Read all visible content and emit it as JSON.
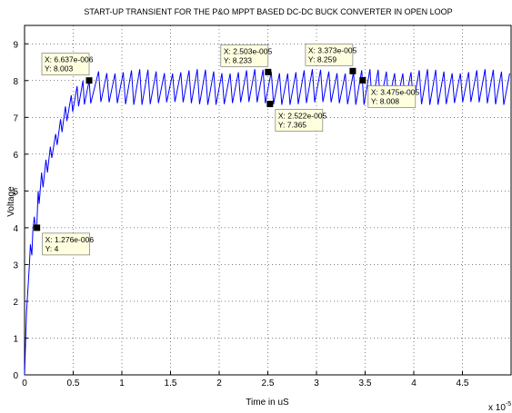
{
  "chart_data": {
    "type": "line",
    "title": "START-UP TRANSIENT FOR THE P&O MPPT BASED DC-DC BUCK CONVERTER IN OPEN LOOP",
    "xlabel": "Time in uS",
    "ylabel": "Voltage",
    "x_exponent_label": "x 10",
    "x_exponent_power": "-5",
    "xlim": [
      0,
      5
    ],
    "ylim": [
      0,
      9.5
    ],
    "grid": true,
    "x_ticks": [
      "0",
      "0.5",
      "1",
      "1.5",
      "2",
      "2.5",
      "3",
      "3.5",
      "4",
      "4.5"
    ],
    "y_ticks": [
      "0",
      "1",
      "2",
      "3",
      "4",
      "5",
      "6",
      "7",
      "8",
      "9"
    ],
    "line_color": "#0000ff",
    "ripple": {
      "start_x": 0.7,
      "period": 0.0845,
      "low": 7.38,
      "high": 8.25
    },
    "startup_points": [
      {
        "x": 0.0,
        "y": 0.0
      },
      {
        "x": 0.02,
        "y": 1.7
      },
      {
        "x": 0.05,
        "y": 3.0
      },
      {
        "x": 0.06,
        "y": 3.55
      },
      {
        "x": 0.075,
        "y": 3.25
      },
      {
        "x": 0.085,
        "y": 3.9
      },
      {
        "x": 0.1,
        "y": 4.3
      },
      {
        "x": 0.11,
        "y": 4.05
      },
      {
        "x": 0.125,
        "y": 4.0
      },
      {
        "x": 0.14,
        "y": 5.0
      },
      {
        "x": 0.15,
        "y": 4.65
      },
      {
        "x": 0.175,
        "y": 5.5
      },
      {
        "x": 0.19,
        "y": 5.1
      },
      {
        "x": 0.22,
        "y": 5.85
      },
      {
        "x": 0.235,
        "y": 5.5
      },
      {
        "x": 0.265,
        "y": 6.2
      },
      {
        "x": 0.28,
        "y": 5.9
      },
      {
        "x": 0.32,
        "y": 6.55
      },
      {
        "x": 0.335,
        "y": 6.25
      },
      {
        "x": 0.37,
        "y": 6.95
      },
      {
        "x": 0.385,
        "y": 6.6
      },
      {
        "x": 0.42,
        "y": 7.3
      },
      {
        "x": 0.435,
        "y": 6.9
      },
      {
        "x": 0.48,
        "y": 7.6
      },
      {
        "x": 0.495,
        "y": 7.15
      },
      {
        "x": 0.54,
        "y": 7.85
      },
      {
        "x": 0.555,
        "y": 7.3
      },
      {
        "x": 0.6,
        "y": 8.0
      },
      {
        "x": 0.615,
        "y": 7.35
      },
      {
        "x": 0.6637,
        "y": 8.003
      },
      {
        "x": 0.68,
        "y": 7.38
      }
    ],
    "datatips": [
      {
        "x": 0.1276,
        "y": 4.0,
        "line1": "X: 1.276e-006",
        "line2": "Y: 4",
        "box_pos": "below-right"
      },
      {
        "x": 0.6637,
        "y": 8.003,
        "line1": "X: 6.637e-006",
        "line2": "Y: 8.003",
        "box_pos": "above-left"
      },
      {
        "x": 2.503,
        "y": 8.233,
        "line1": "X: 2.503e-005",
        "line2": "Y: 8.233",
        "box_pos": "above-left"
      },
      {
        "x": 2.522,
        "y": 7.365,
        "line1": "X: 2.522e-005",
        "line2": "Y: 7.365",
        "box_pos": "below-right"
      },
      {
        "x": 3.373,
        "y": 8.259,
        "line1": "X: 3.373e-005",
        "line2": "Y: 8.259",
        "box_pos": "above-left"
      },
      {
        "x": 3.475,
        "y": 8.008,
        "line1": "X: 3.475e-005",
        "line2": "Y: 8.008",
        "box_pos": "below-right"
      }
    ]
  }
}
